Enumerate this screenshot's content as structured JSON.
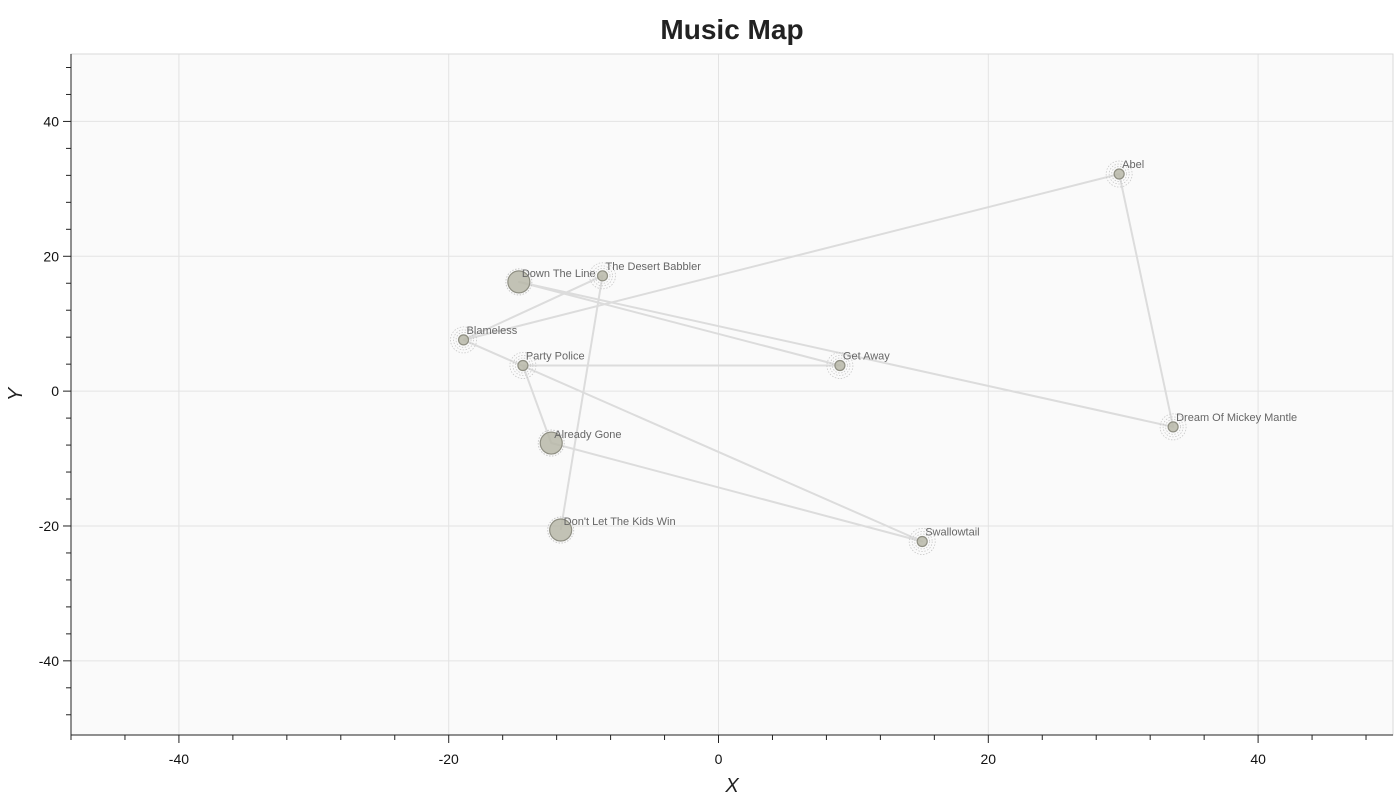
{
  "chart_data": {
    "type": "scatter",
    "title": "Music Map",
    "xlabel": "X",
    "ylabel": "Y",
    "xlim": [
      -48,
      50
    ],
    "ylim": [
      -51,
      50
    ],
    "x_ticks": [
      -40,
      -20,
      0,
      20,
      40
    ],
    "y_ticks": [
      -40,
      -20,
      0,
      20,
      40
    ],
    "x_tick_labels": [
      "-40",
      "-20",
      "0",
      "20",
      "40"
    ],
    "y_tick_labels": [
      "-40",
      "-20",
      "0",
      "20",
      "40"
    ],
    "grid": true,
    "colors": {
      "point_fill": "#b7b7a8",
      "point_stroke": "#8e8e82",
      "halo": "#c8c8c8",
      "path": "#dcdcdc",
      "grid": "#e3e3e3",
      "plot_bg": "#fafafa"
    },
    "points": [
      {
        "label": "Abel",
        "x": 29.7,
        "y": 32.2,
        "size": "small"
      },
      {
        "label": "Dream Of Mickey Mantle",
        "x": 33.7,
        "y": -5.3,
        "size": "small"
      },
      {
        "label": "Down The Line",
        "x": -14.8,
        "y": 16.2,
        "size": "large"
      },
      {
        "label": "Get Away",
        "x": 9.0,
        "y": 3.8,
        "size": "small"
      },
      {
        "label": "Party Police",
        "x": -14.5,
        "y": 3.8,
        "size": "small"
      },
      {
        "label": "Already Gone",
        "x": -12.4,
        "y": -7.7,
        "size": "large"
      },
      {
        "label": "Swallowtail",
        "x": 15.1,
        "y": -22.3,
        "size": "small"
      },
      {
        "label": "Blameless",
        "x": -18.9,
        "y": 7.6,
        "size": "small"
      },
      {
        "label": "The Desert Babbler",
        "x": -8.6,
        "y": 17.1,
        "size": "small"
      },
      {
        "label": "Don't Let The Kids Win",
        "x": -11.7,
        "y": -20.6,
        "size": "large"
      }
    ],
    "path_order": [
      "Blameless",
      "Abel",
      "Dream Of Mickey Mantle",
      "Down The Line",
      "Get Away",
      "Party Police",
      "Already Gone",
      "Swallowtail",
      "Blameless",
      "The Desert Babbler",
      "Don't Let The Kids Win"
    ]
  }
}
